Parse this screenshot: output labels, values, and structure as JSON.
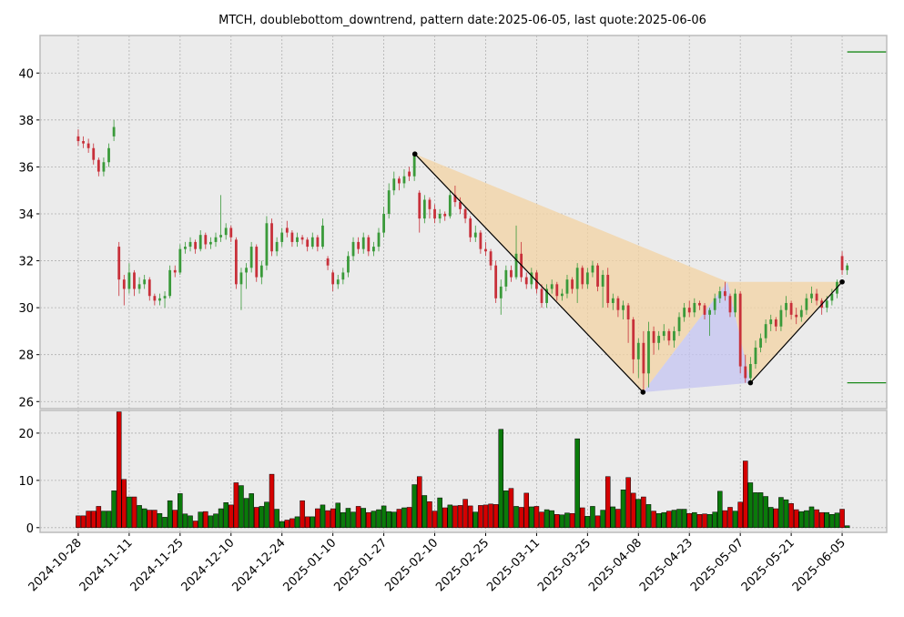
{
  "chart_data": {
    "type": "candlestick",
    "title": "MTCH, doublebottom_downtrend, pattern date:2025-06-05, last quote:2025-06-06",
    "categories": [
      "2024-10-28",
      null,
      null,
      null,
      null,
      null,
      null,
      null,
      null,
      null,
      "2024-11-11",
      null,
      null,
      null,
      null,
      null,
      null,
      null,
      null,
      null,
      "2024-11-25",
      null,
      null,
      null,
      null,
      null,
      null,
      null,
      null,
      null,
      "2024-12-10",
      null,
      null,
      null,
      null,
      null,
      null,
      null,
      null,
      null,
      "2024-12-24",
      null,
      null,
      null,
      null,
      null,
      null,
      null,
      null,
      null,
      "2025-01-10",
      null,
      null,
      null,
      null,
      null,
      null,
      null,
      null,
      null,
      "2025-01-27",
      null,
      null,
      null,
      null,
      null,
      null,
      null,
      null,
      null,
      "2025-02-10",
      null,
      null,
      null,
      null,
      null,
      null,
      null,
      null,
      null,
      "2025-02-25",
      null,
      null,
      null,
      null,
      null,
      null,
      null,
      null,
      null,
      "2025-03-11",
      null,
      null,
      null,
      null,
      null,
      null,
      null,
      null,
      null,
      "2025-03-25",
      null,
      null,
      null,
      null,
      null,
      null,
      null,
      null,
      null,
      "2025-04-08",
      null,
      null,
      null,
      null,
      null,
      null,
      null,
      null,
      null,
      "2025-04-23",
      null,
      null,
      null,
      null,
      null,
      null,
      null,
      null,
      null,
      "2025-05-07",
      null,
      null,
      null,
      null,
      null,
      null,
      null,
      null,
      null,
      "2025-05-21",
      null,
      null,
      null,
      null,
      null,
      null,
      null,
      null,
      null,
      "2025-06-05",
      null
    ],
    "candles": [
      [
        37.3,
        37.6,
        36.9,
        37.1
      ],
      [
        37.1,
        37.3,
        36.8,
        37.0
      ],
      [
        37.0,
        37.2,
        36.6,
        36.8
      ],
      [
        36.8,
        37.0,
        36.1,
        36.3
      ],
      [
        36.3,
        36.4,
        35.6,
        35.8
      ],
      [
        35.8,
        36.4,
        35.6,
        36.2
      ],
      [
        36.2,
        37.0,
        36.0,
        36.8
      ],
      [
        37.3,
        38.0,
        37.1,
        37.7
      ],
      [
        32.6,
        32.8,
        30.5,
        31.2
      ],
      [
        31.2,
        31.4,
        30.1,
        30.8
      ],
      [
        30.8,
        31.9,
        30.6,
        31.5
      ],
      [
        31.5,
        31.6,
        30.5,
        30.8
      ],
      [
        30.8,
        31.3,
        30.6,
        31.0
      ],
      [
        31.0,
        31.4,
        30.8,
        31.2
      ],
      [
        31.2,
        31.3,
        30.3,
        30.5
      ],
      [
        30.5,
        30.6,
        30.1,
        30.3
      ],
      [
        30.3,
        30.6,
        30.1,
        30.4
      ],
      [
        30.4,
        30.7,
        30.0,
        30.5
      ],
      [
        30.5,
        31.8,
        30.4,
        31.6
      ],
      [
        31.6,
        31.8,
        31.3,
        31.5
      ],
      [
        31.5,
        32.7,
        31.4,
        32.5
      ],
      [
        32.5,
        32.8,
        32.3,
        32.6
      ],
      [
        32.6,
        33.0,
        32.4,
        32.8
      ],
      [
        32.8,
        32.9,
        32.3,
        32.5
      ],
      [
        32.5,
        33.3,
        32.4,
        33.1
      ],
      [
        33.1,
        33.2,
        32.5,
        32.7
      ],
      [
        32.7,
        33.0,
        32.5,
        32.8
      ],
      [
        32.8,
        33.2,
        32.6,
        33.0
      ],
      [
        33.0,
        34.8,
        32.8,
        33.1
      ],
      [
        33.1,
        33.6,
        32.9,
        33.4
      ],
      [
        33.4,
        33.5,
        32.8,
        33.0
      ],
      [
        32.9,
        33.0,
        30.8,
        31.0
      ],
      [
        31.0,
        31.7,
        29.9,
        31.5
      ],
      [
        31.5,
        31.9,
        30.8,
        31.7
      ],
      [
        31.7,
        32.8,
        31.5,
        32.6
      ],
      [
        32.6,
        32.7,
        31.1,
        31.3
      ],
      [
        31.3,
        32.0,
        31.0,
        31.8
      ],
      [
        31.8,
        33.9,
        31.6,
        33.6
      ],
      [
        33.6,
        33.8,
        32.2,
        32.4
      ],
      [
        32.4,
        33.0,
        32.2,
        32.8
      ],
      [
        32.8,
        33.4,
        32.6,
        33.2
      ],
      [
        33.4,
        33.7,
        33.0,
        33.2
      ],
      [
        33.2,
        33.3,
        32.6,
        32.8
      ],
      [
        32.8,
        33.2,
        32.6,
        33.0
      ],
      [
        33.0,
        33.1,
        32.7,
        32.9
      ],
      [
        32.9,
        33.0,
        32.4,
        32.6
      ],
      [
        32.6,
        33.2,
        32.5,
        33.0
      ],
      [
        33.0,
        33.1,
        32.4,
        32.6
      ],
      [
        32.6,
        33.8,
        32.5,
        33.5
      ],
      [
        32.1,
        32.2,
        31.6,
        31.8
      ],
      [
        31.5,
        31.6,
        30.7,
        31.0
      ],
      [
        31.0,
        31.4,
        30.8,
        31.2
      ],
      [
        31.2,
        31.7,
        31.0,
        31.5
      ],
      [
        31.5,
        32.4,
        31.3,
        32.2
      ],
      [
        32.2,
        33.0,
        32.0,
        32.8
      ],
      [
        32.8,
        33.0,
        32.3,
        32.5
      ],
      [
        32.5,
        33.2,
        32.3,
        33.0
      ],
      [
        33.0,
        33.1,
        32.2,
        32.4
      ],
      [
        32.4,
        32.8,
        32.2,
        32.6
      ],
      [
        32.6,
        33.4,
        32.4,
        33.2
      ],
      [
        33.2,
        34.3,
        33.0,
        34.0
      ],
      [
        34.0,
        35.3,
        33.8,
        35.0
      ],
      [
        35.0,
        35.8,
        34.8,
        35.5
      ],
      [
        35.5,
        35.6,
        35.0,
        35.3
      ],
      [
        35.3,
        35.9,
        35.1,
        35.6
      ],
      [
        35.8,
        36.0,
        35.4,
        35.6
      ],
      [
        35.6,
        36.6,
        35.4,
        36.5
      ],
      [
        34.9,
        35.0,
        33.2,
        33.8
      ],
      [
        33.8,
        34.8,
        33.6,
        34.6
      ],
      [
        34.6,
        34.7,
        33.8,
        34.2
      ],
      [
        34.2,
        34.4,
        33.6,
        33.8
      ],
      [
        33.8,
        34.2,
        33.6,
        34.0
      ],
      [
        34.0,
        34.1,
        33.7,
        33.9
      ],
      [
        33.9,
        35.0,
        33.8,
        34.8
      ],
      [
        34.8,
        35.2,
        34.3,
        34.5
      ],
      [
        34.5,
        34.7,
        34.0,
        34.2
      ],
      [
        34.2,
        34.3,
        33.6,
        33.8
      ],
      [
        33.8,
        33.9,
        32.8,
        33.0
      ],
      [
        33.0,
        33.5,
        32.8,
        33.2
      ],
      [
        33.2,
        33.3,
        32.3,
        32.5
      ],
      [
        32.5,
        32.8,
        32.2,
        32.4
      ],
      [
        32.4,
        32.5,
        31.6,
        31.8
      ],
      [
        31.8,
        32.0,
        30.2,
        30.4
      ],
      [
        30.4,
        31.2,
        29.7,
        30.9
      ],
      [
        30.9,
        31.8,
        30.7,
        31.6
      ],
      [
        31.6,
        31.8,
        31.1,
        31.3
      ],
      [
        31.3,
        33.5,
        31.2,
        32.3
      ],
      [
        32.3,
        32.8,
        31.1,
        31.3
      ],
      [
        31.3,
        31.5,
        30.8,
        31.0
      ],
      [
        31.0,
        31.7,
        30.8,
        31.5
      ],
      [
        31.5,
        31.6,
        30.6,
        30.8
      ],
      [
        30.8,
        31.0,
        30.0,
        30.2
      ],
      [
        30.2,
        31.0,
        30.0,
        30.8
      ],
      [
        30.8,
        31.2,
        30.6,
        31.0
      ],
      [
        31.0,
        31.1,
        30.3,
        30.5
      ],
      [
        30.5,
        30.8,
        30.3,
        30.6
      ],
      [
        30.6,
        31.4,
        30.4,
        31.2
      ],
      [
        31.2,
        31.3,
        30.6,
        30.8
      ],
      [
        30.8,
        31.9,
        30.2,
        31.7
      ],
      [
        31.7,
        31.8,
        30.8,
        31.0
      ],
      [
        31.0,
        31.7,
        30.8,
        31.5
      ],
      [
        31.5,
        32.0,
        31.3,
        31.8
      ],
      [
        31.8,
        31.9,
        30.7,
        30.9
      ],
      [
        30.9,
        31.6,
        30.0,
        31.4
      ],
      [
        31.4,
        31.7,
        30.0,
        30.2
      ],
      [
        30.2,
        30.6,
        29.9,
        30.4
      ],
      [
        30.4,
        30.5,
        29.6,
        29.9
      ],
      [
        29.9,
        30.3,
        29.5,
        30.1
      ],
      [
        30.1,
        30.2,
        28.5,
        29.5
      ],
      [
        29.5,
        29.6,
        27.2,
        27.8
      ],
      [
        27.8,
        28.7,
        27.0,
        28.5
      ],
      [
        28.5,
        29.0,
        26.4,
        27.2
      ],
      [
        27.2,
        29.4,
        26.6,
        29.0
      ],
      [
        29.0,
        29.2,
        28.0,
        28.5
      ],
      [
        28.5,
        29.0,
        28.2,
        28.8
      ],
      [
        28.8,
        29.3,
        28.6,
        29.0
      ],
      [
        29.0,
        29.1,
        28.4,
        28.6
      ],
      [
        28.6,
        29.2,
        28.3,
        29.0
      ],
      [
        29.0,
        29.8,
        28.8,
        29.6
      ],
      [
        29.6,
        30.2,
        29.4,
        30.0
      ],
      [
        30.0,
        30.3,
        29.6,
        29.8
      ],
      [
        29.8,
        30.4,
        29.6,
        30.2
      ],
      [
        30.2,
        30.3,
        29.9,
        30.1
      ],
      [
        30.1,
        30.2,
        29.5,
        29.7
      ],
      [
        29.7,
        30.0,
        28.8,
        29.9
      ],
      [
        29.9,
        30.6,
        29.7,
        30.4
      ],
      [
        30.4,
        30.9,
        30.2,
        30.7
      ],
      [
        30.7,
        31.1,
        30.3,
        30.5
      ],
      [
        30.5,
        30.6,
        29.6,
        29.8
      ],
      [
        29.8,
        30.8,
        29.6,
        30.6
      ],
      [
        30.6,
        30.7,
        27.2,
        27.5
      ],
      [
        27.5,
        28.0,
        26.8,
        27.0
      ],
      [
        27.0,
        27.9,
        26.8,
        27.6
      ],
      [
        27.6,
        28.6,
        27.4,
        28.3
      ],
      [
        28.3,
        28.9,
        28.1,
        28.7
      ],
      [
        28.7,
        29.5,
        28.5,
        29.3
      ],
      [
        29.3,
        29.7,
        29.0,
        29.5
      ],
      [
        29.5,
        29.6,
        29.0,
        29.2
      ],
      [
        29.2,
        30.1,
        29.0,
        29.9
      ],
      [
        29.9,
        30.5,
        29.6,
        30.2
      ],
      [
        30.2,
        30.3,
        29.5,
        29.7
      ],
      [
        29.7,
        30.0,
        29.3,
        29.6
      ],
      [
        29.6,
        30.1,
        29.4,
        29.9
      ],
      [
        29.9,
        30.6,
        29.7,
        30.4
      ],
      [
        30.4,
        30.9,
        30.2,
        30.6
      ],
      [
        30.6,
        30.8,
        30.1,
        30.3
      ],
      [
        30.3,
        30.4,
        29.7,
        30.0
      ],
      [
        30.0,
        30.5,
        29.8,
        30.3
      ],
      [
        30.3,
        30.8,
        30.1,
        30.6
      ],
      [
        30.6,
        31.2,
        30.4,
        31.1
      ],
      [
        32.2,
        32.4,
        31.4,
        31.6
      ],
      [
        31.6,
        31.9,
        31.4,
        31.8
      ]
    ],
    "xlim": [
      -7.5,
      158.75
    ],
    "ylim": [
      25.7,
      41.6
    ],
    "yticks": [
      26,
      28,
      30,
      32,
      34,
      36,
      38,
      40
    ],
    "up_color": "#3a9a3a",
    "down_color": "#c8303a",
    "grid": true,
    "pattern": {
      "x": [
        66.1,
        110.9,
        127.5,
        132,
        150
      ],
      "y": [
        36.55,
        26.4,
        31.1,
        26.8,
        31.1
      ],
      "fill": "#f3d3a3",
      "fill2": "#c4c4f2"
    },
    "levels": [
      40.9,
      26.8
    ],
    "level_color": "#1a8a1a",
    "volume": {
      "type": "bar",
      "values": [
        2.5,
        2.5,
        3.5,
        3.5,
        4.5,
        3.5,
        3.5,
        7.8,
        24.5,
        10.2,
        6.5,
        6.5,
        4.7,
        4.0,
        3.7,
        3.7,
        3.0,
        2.2,
        5.7,
        3.7,
        7.2,
        2.9,
        2.5,
        1.4,
        3.3,
        3.4,
        2.5,
        2.9,
        4.0,
        5.3,
        4.8,
        9.5,
        8.9,
        6.2,
        7.2,
        4.3,
        4.5,
        5.4,
        11.3,
        3.9,
        1.3,
        1.6,
        1.9,
        2.3,
        5.7,
        2.3,
        2.3,
        4.0,
        4.8,
        3.6,
        4.0,
        5.2,
        3.2,
        4.1,
        3.3,
        4.5,
        4.1,
        3.2,
        3.5,
        3.8,
        4.6,
        3.4,
        3.3,
        3.9,
        4.2,
        4.3,
        9.1,
        10.8,
        6.8,
        5.5,
        3.5,
        6.3,
        4.2,
        4.8,
        4.6,
        4.7,
        6.0,
        4.6,
        3.3,
        4.7,
        4.8,
        5.0,
        4.9,
        20.8,
        7.8,
        8.3,
        4.5,
        4.3,
        7.3,
        4.4,
        4.5,
        3.3,
        3.8,
        3.6,
        2.8,
        2.7,
        3.1,
        3.0,
        18.8,
        4.2,
        2.4,
        4.5,
        2.5,
        3.7,
        10.8,
        4.4,
        3.9,
        8.0,
        10.6,
        7.3,
        6.0,
        6.5,
        4.9,
        3.5,
        3.0,
        3.2,
        3.5,
        3.7,
        3.9,
        3.9,
        3.0,
        3.2,
        2.8,
        2.9,
        2.8,
        3.3,
        7.7,
        3.6,
        4.3,
        3.5,
        5.4,
        14.1,
        9.5,
        7.4,
        7.4,
        6.6,
        4.3,
        4.0,
        6.4,
        5.9,
        5.1,
        3.8,
        3.4,
        3.6,
        4.4,
        3.8,
        3.2,
        3.2,
        2.8,
        3.1,
        3.9,
        0.4
      ],
      "ylim": [
        -1,
        24.8
      ],
      "yticks": [
        0,
        10,
        20
      ],
      "up_color": "#0a7a0a",
      "down_color": "#d40000"
    }
  }
}
